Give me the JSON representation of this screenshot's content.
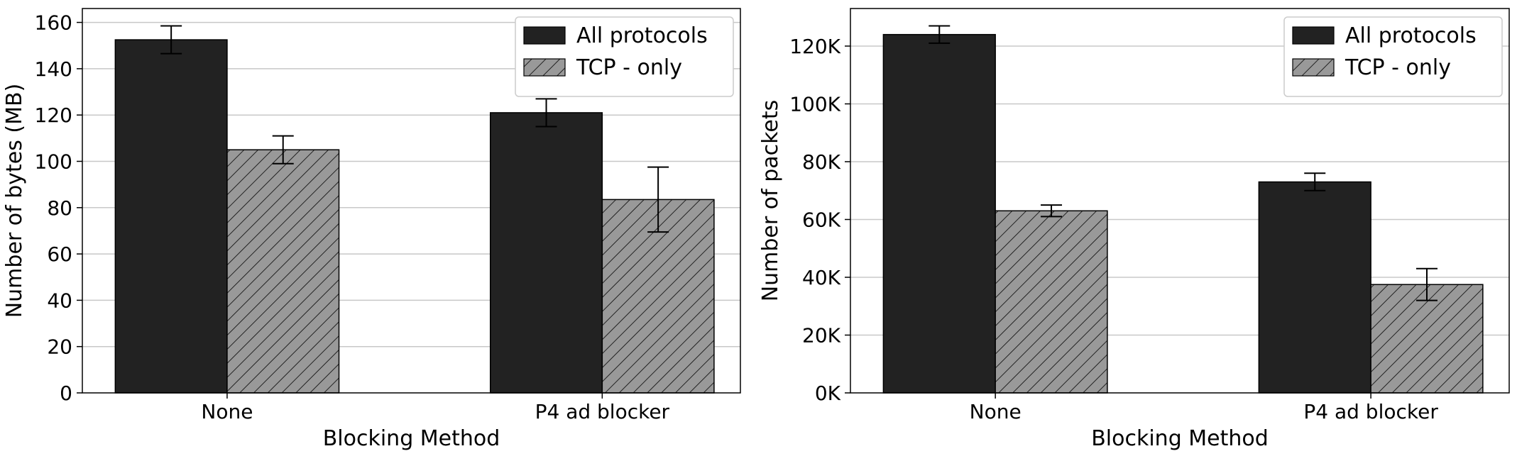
{
  "chart_data": [
    {
      "type": "bar",
      "categories": [
        "None",
        "P4 ad blocker"
      ],
      "xlabel": "Blocking Method",
      "ylabel": "Number of bytes (MB)",
      "ylim": [
        0,
        166
      ],
      "yticks": [
        0,
        20,
        40,
        60,
        80,
        100,
        120,
        140,
        160
      ],
      "ytick_labels": [
        "0",
        "20",
        "40",
        "60",
        "80",
        "100",
        "120",
        "140",
        "160"
      ],
      "grid": "horizontal",
      "legend_position": "top-right",
      "series": [
        {
          "name": "All protocols",
          "values": [
            152.5,
            121
          ],
          "errors": [
            6,
            6
          ],
          "color": "#222222",
          "pattern": "solid"
        },
        {
          "name": "TCP - only",
          "values": [
            105,
            83.5
          ],
          "errors": [
            6,
            14
          ],
          "color": "#999999",
          "pattern": "hatched"
        }
      ]
    },
    {
      "type": "bar",
      "categories": [
        "None",
        "P4 ad blocker"
      ],
      "xlabel": "Blocking Method",
      "ylabel": "Number of packets",
      "ylim": [
        0,
        133000
      ],
      "yticks": [
        0,
        20000,
        40000,
        60000,
        80000,
        100000,
        120000
      ],
      "ytick_labels": [
        "0K",
        "20K",
        "40K",
        "60K",
        "80K",
        "100K",
        "120K"
      ],
      "grid": "horizontal",
      "legend_position": "top-right",
      "series": [
        {
          "name": "All protocols",
          "values": [
            124000,
            73000
          ],
          "errors": [
            3000,
            3000
          ],
          "color": "#222222",
          "pattern": "solid"
        },
        {
          "name": "TCP - only",
          "values": [
            63000,
            37500
          ],
          "errors": [
            2000,
            5500
          ],
          "color": "#999999",
          "pattern": "hatched"
        }
      ]
    }
  ]
}
